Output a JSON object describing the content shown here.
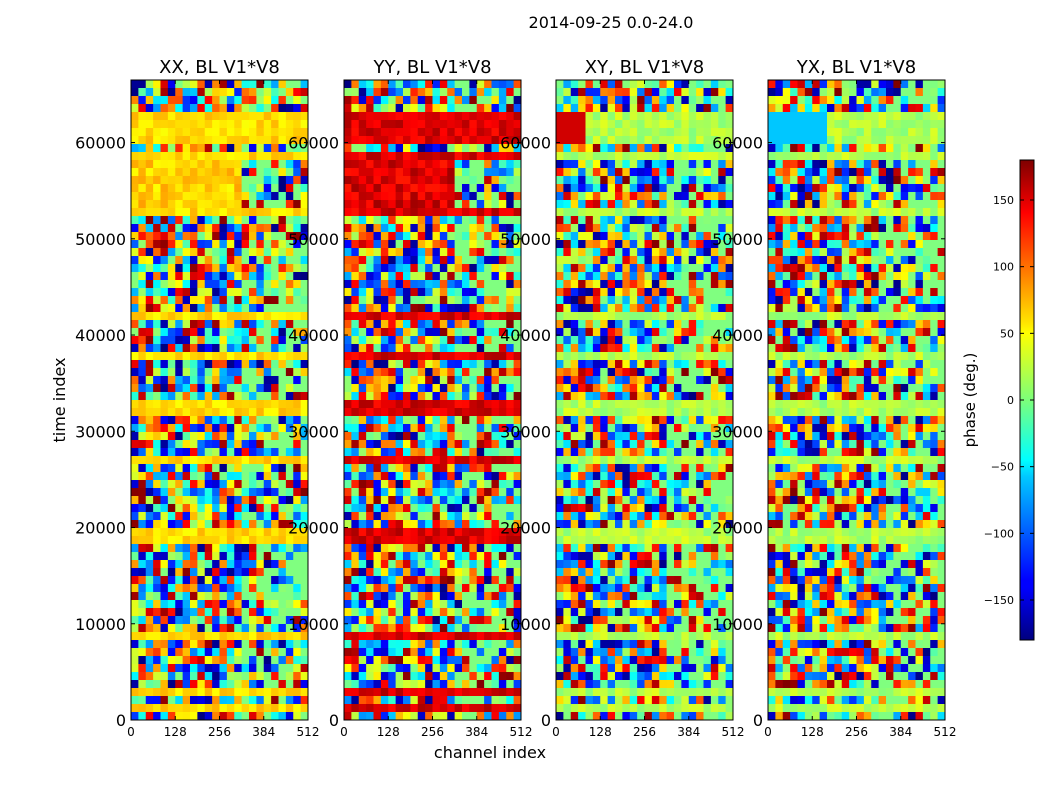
{
  "suptitle": "2014-09-25 0.0-24.0",
  "chart_data": {
    "type": "heatmap",
    "xlabel": "channel index",
    "ylabel": "time index",
    "xlim": [
      0,
      512
    ],
    "ylim": [
      0,
      66500
    ],
    "xticks": [
      0,
      128,
      256,
      384,
      512
    ],
    "yticks": [
      0,
      10000,
      20000,
      30000,
      40000,
      50000,
      60000
    ],
    "panels": [
      {
        "title": "XX, BL V1*V8",
        "style": "auto-strong",
        "flag": "yellow"
      },
      {
        "title": "YY, BL V1*V8",
        "style": "cross-strong",
        "flag": "red"
      },
      {
        "title": "XY, BL V1*V8",
        "style": "auto-weak",
        "flag": "xy"
      },
      {
        "title": "YX, BL V1*V8",
        "style": "cross-weak",
        "flag": "yx"
      }
    ],
    "flagged_time_bands": [
      [
        700,
        1900
      ],
      [
        2400,
        3200
      ],
      [
        8600,
        9400
      ],
      [
        18300,
        18800
      ],
      [
        19000,
        20200
      ],
      [
        26800,
        27800
      ],
      [
        31800,
        33000
      ],
      [
        37800,
        38300
      ],
      [
        41400,
        42300
      ],
      [
        48000,
        48600
      ],
      [
        52600,
        53300
      ],
      [
        58400,
        59300
      ],
      [
        59500,
        60100
      ],
      [
        60200,
        63000
      ]
    ],
    "colorbar": {
      "label": "phase (deg.)",
      "range": [
        -180,
        180
      ],
      "ticks": [
        150,
        100,
        50,
        0,
        -50,
        -100,
        -150
      ],
      "tick_labels": [
        "150",
        "100",
        "50",
        "0",
        "−50",
        "−100",
        "−150"
      ],
      "colormap": "jet"
    }
  }
}
